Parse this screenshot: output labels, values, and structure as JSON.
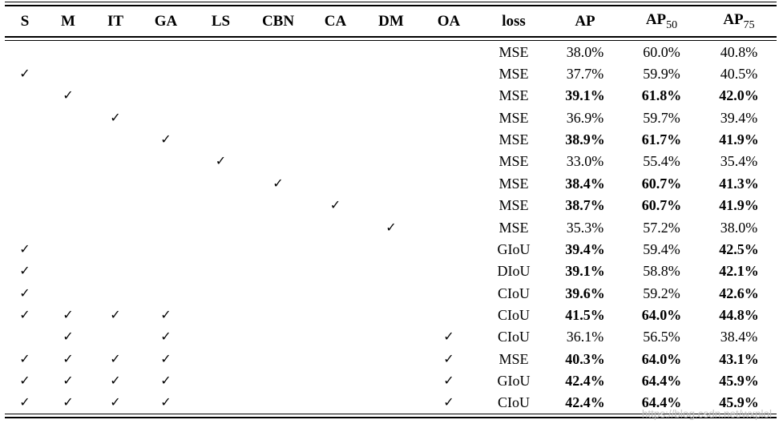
{
  "watermark": {
    "text": "https://blog.csdn.net/wxplol"
  },
  "table": {
    "check_glyph": "✓",
    "columns": [
      {
        "key": "S",
        "label": "S",
        "type": "check"
      },
      {
        "key": "M",
        "label": "M",
        "type": "check"
      },
      {
        "key": "IT",
        "label": "IT",
        "type": "check"
      },
      {
        "key": "GA",
        "label": "GA",
        "type": "check"
      },
      {
        "key": "LS",
        "label": "LS",
        "type": "check"
      },
      {
        "key": "CBN",
        "label": "CBN",
        "type": "check"
      },
      {
        "key": "CA",
        "label": "CA",
        "type": "check"
      },
      {
        "key": "DM",
        "label": "DM",
        "type": "check"
      },
      {
        "key": "OA",
        "label": "OA",
        "type": "check"
      },
      {
        "key": "loss",
        "label": "loss",
        "type": "field",
        "field": "loss"
      },
      {
        "key": "ap",
        "label": "AP",
        "sub": "",
        "type": "field",
        "field": "ap"
      },
      {
        "key": "ap50",
        "label": "AP",
        "sub": "50",
        "type": "field",
        "field": "ap50"
      },
      {
        "key": "ap75",
        "label": "AP",
        "sub": "75",
        "type": "field",
        "field": "ap75"
      }
    ],
    "rows": [
      {
        "checks": [],
        "loss": "MSE",
        "ap": "38.0%",
        "ap50": "60.0%",
        "ap75": "40.8%",
        "bold": []
      },
      {
        "checks": [
          "S"
        ],
        "loss": "MSE",
        "ap": "37.7%",
        "ap50": "59.9%",
        "ap75": "40.5%",
        "bold": []
      },
      {
        "checks": [
          "M"
        ],
        "loss": "MSE",
        "ap": "39.1%",
        "ap50": "61.8%",
        "ap75": "42.0%",
        "bold": [
          "ap",
          "ap50",
          "ap75"
        ]
      },
      {
        "checks": [
          "IT"
        ],
        "loss": "MSE",
        "ap": "36.9%",
        "ap50": "59.7%",
        "ap75": "39.4%",
        "bold": []
      },
      {
        "checks": [
          "GA"
        ],
        "loss": "MSE",
        "ap": "38.9%",
        "ap50": "61.7%",
        "ap75": "41.9%",
        "bold": [
          "ap",
          "ap50",
          "ap75"
        ]
      },
      {
        "checks": [
          "LS"
        ],
        "loss": "MSE",
        "ap": "33.0%",
        "ap50": "55.4%",
        "ap75": "35.4%",
        "bold": []
      },
      {
        "checks": [
          "CBN"
        ],
        "loss": "MSE",
        "ap": "38.4%",
        "ap50": "60.7%",
        "ap75": "41.3%",
        "bold": [
          "ap",
          "ap50",
          "ap75"
        ]
      },
      {
        "checks": [
          "CA"
        ],
        "loss": "MSE",
        "ap": "38.7%",
        "ap50": "60.7%",
        "ap75": "41.9%",
        "bold": [
          "ap",
          "ap50",
          "ap75"
        ]
      },
      {
        "checks": [
          "DM"
        ],
        "loss": "MSE",
        "ap": "35.3%",
        "ap50": "57.2%",
        "ap75": "38.0%",
        "bold": []
      },
      {
        "checks": [
          "S"
        ],
        "loss": "GIoU",
        "ap": "39.4%",
        "ap50": "59.4%",
        "ap75": "42.5%",
        "bold": [
          "ap",
          "ap75"
        ]
      },
      {
        "checks": [
          "S"
        ],
        "loss": "DIoU",
        "ap": "39.1%",
        "ap50": "58.8%",
        "ap75": "42.1%",
        "bold": [
          "ap",
          "ap75"
        ]
      },
      {
        "checks": [
          "S"
        ],
        "loss": "CIoU",
        "ap": "39.6%",
        "ap50": "59.2%",
        "ap75": "42.6%",
        "bold": [
          "ap",
          "ap75"
        ]
      },
      {
        "checks": [
          "S",
          "M",
          "IT",
          "GA"
        ],
        "loss": "CIoU",
        "ap": "41.5%",
        "ap50": "64.0%",
        "ap75": "44.8%",
        "bold": [
          "ap",
          "ap50",
          "ap75"
        ]
      },
      {
        "checks": [
          "M",
          "GA",
          "OA"
        ],
        "loss": "CIoU",
        "ap": "36.1%",
        "ap50": "56.5%",
        "ap75": "38.4%",
        "bold": []
      },
      {
        "checks": [
          "S",
          "M",
          "IT",
          "GA",
          "OA"
        ],
        "loss": "MSE",
        "ap": "40.3%",
        "ap50": "64.0%",
        "ap75": "43.1%",
        "bold": [
          "ap",
          "ap50",
          "ap75"
        ]
      },
      {
        "checks": [
          "S",
          "M",
          "IT",
          "GA",
          "OA"
        ],
        "loss": "GIoU",
        "ap": "42.4%",
        "ap50": "64.4%",
        "ap75": "45.9%",
        "bold": [
          "ap",
          "ap50",
          "ap75"
        ]
      },
      {
        "checks": [
          "S",
          "M",
          "IT",
          "GA",
          "OA"
        ],
        "loss": "CIoU",
        "ap": "42.4%",
        "ap50": "64.4%",
        "ap75": "45.9%",
        "bold": [
          "ap",
          "ap50",
          "ap75"
        ]
      }
    ]
  }
}
